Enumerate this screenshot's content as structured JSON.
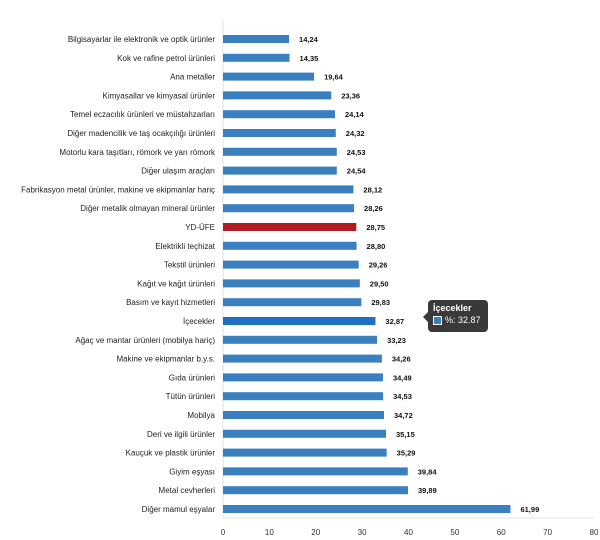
{
  "chart_data": {
    "type": "bar",
    "orientation": "horizontal",
    "categories": [
      "Bilgisayarlar ile elektronik ve optik ürünler",
      "Kok ve rafine petrol ürünleri",
      "Ana metaller",
      "Kimyasallar ve kimyasal ürünler",
      "Temel eczacılık ürünleri ve müstahzarları",
      "Diğer madencilik ve taş ocakçılığı ürünleri",
      "Motorlu kara taşıtları, römork ve yarı römork",
      "Diğer ulaşım araçları",
      "Fabrikasyon metal ürünler, makine ve ekipmanlar hariç",
      "Diğer metalik olmayan mineral ürünler",
      "YD-ÜFE",
      "Elektrikli teçhizat",
      "Tekstil ürünleri",
      "Kağıt ve kağıt ürünleri",
      "Basım ve kayıt hizmetleri",
      "İçecekler",
      "Ağaç ve mantar ürünleri (mobilya hariç)",
      "Makine ve ekipmanlar b.y.s.",
      "Gıda ürünleri",
      "Tütün ürünleri",
      "Mobilya",
      "Deri ve ilgili ürünler",
      "Kauçuk ve plastik ürünler",
      "Giyim eşyası",
      "Metal cevherleri",
      "Diğer mamul eşyalar"
    ],
    "values": [
      14.24,
      14.35,
      19.64,
      23.36,
      24.14,
      24.32,
      24.53,
      24.54,
      28.12,
      28.26,
      28.75,
      28.8,
      29.26,
      29.5,
      29.83,
      32.87,
      33.23,
      34.26,
      34.49,
      34.53,
      34.72,
      35.15,
      35.29,
      39.84,
      39.89,
      61.99
    ],
    "value_labels": [
      "14,24",
      "14,35",
      "19,64",
      "23,36",
      "24,14",
      "24,32",
      "24,53",
      "24,54",
      "28,12",
      "28,26",
      "28,75",
      "28,80",
      "29,26",
      "29,50",
      "29,83",
      "32,87",
      "33,23",
      "34,26",
      "34,49",
      "34,53",
      "34,72",
      "35,15",
      "35,29",
      "39,84",
      "39,89",
      "61,99"
    ],
    "highlight_index": 10,
    "hover_index": 15,
    "xlim": [
      0,
      80
    ],
    "xticks": [
      0,
      10,
      20,
      30,
      40,
      50,
      60,
      70,
      80
    ],
    "colors": {
      "bar": "#3a7fc0",
      "highlight": "#b01c24",
      "hover": "#1f6fc4"
    },
    "grid": false,
    "tooltip": {
      "title": "İçecekler",
      "label": "%: 32.87"
    }
  }
}
